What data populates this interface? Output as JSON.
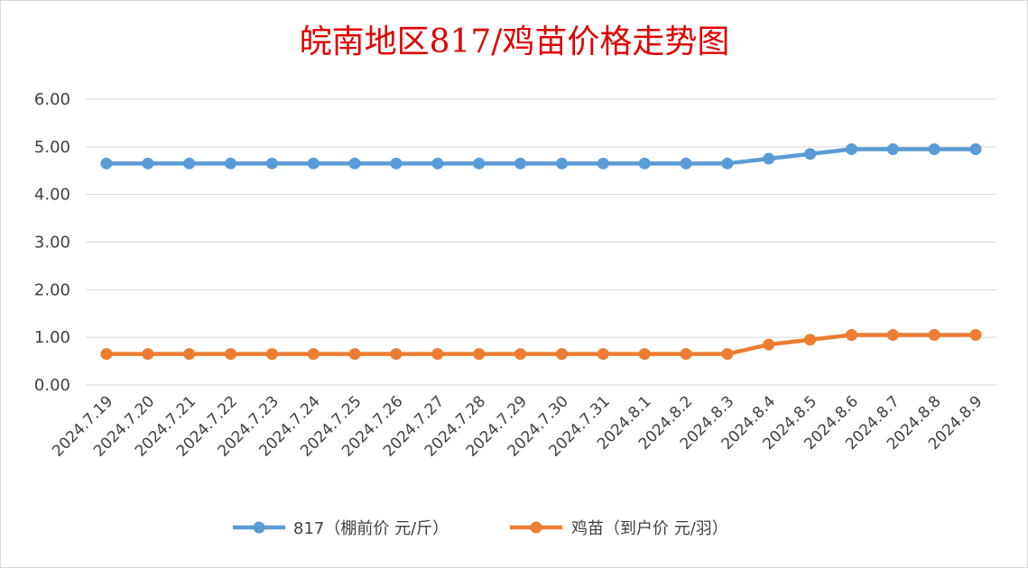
{
  "chart_data": {
    "type": "line",
    "title": "皖南地区817/鸡苗价格走势图",
    "xlabel": "",
    "ylabel": "",
    "categories": [
      "2024.7.19",
      "2024.7.20",
      "2024.7.21",
      "2024.7.22",
      "2024.7.23",
      "2024.7.24",
      "2024.7.25",
      "2024.7.26",
      "2024.7.27",
      "2024.7.28",
      "2024.7.29",
      "2024.7.30",
      "2024.7.31",
      "2024.8.1",
      "2024.8.2",
      "2024.8.3",
      "2024.8.4",
      "2024.8.5",
      "2024.8.6",
      "2024.8.7",
      "2024.8.8",
      "2024.8.9"
    ],
    "series": [
      {
        "name": "817（棚前价 元/斤）",
        "color": "#5b9bd5",
        "values": [
          4.65,
          4.65,
          4.65,
          4.65,
          4.65,
          4.65,
          4.65,
          4.65,
          4.65,
          4.65,
          4.65,
          4.65,
          4.65,
          4.65,
          4.65,
          4.65,
          4.75,
          4.85,
          4.95,
          4.95,
          4.95,
          4.95
        ]
      },
      {
        "name": "鸡苗（到户价 元/羽）",
        "color": "#ed7d31",
        "values": [
          0.65,
          0.65,
          0.65,
          0.65,
          0.65,
          0.65,
          0.65,
          0.65,
          0.65,
          0.65,
          0.65,
          0.65,
          0.65,
          0.65,
          0.65,
          0.65,
          0.85,
          0.95,
          1.05,
          1.05,
          1.05,
          1.05
        ]
      }
    ],
    "ylim": [
      0,
      6
    ],
    "yticks": [
      "0.00",
      "1.00",
      "2.00",
      "3.00",
      "4.00",
      "5.00",
      "6.00"
    ],
    "grid": true,
    "legend": "bottom"
  }
}
